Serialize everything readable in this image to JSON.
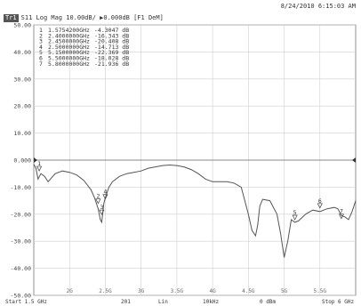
{
  "timestamp": "8/24/2010 6:15:03 AM",
  "trace": {
    "badge": "Tr1",
    "header": "S11 Log Mag 10.00dB/ ▶0.000dB [F1 DeM]"
  },
  "markers": [
    {
      "num": "1",
      "freq": "1.5754200GHz",
      "val": "-4.3047 dB"
    },
    {
      "num": "2",
      "freq": "2.4000000GHz",
      "val": "-16.343 dB"
    },
    {
      "num": "3",
      "freq": "2.4500000GHz",
      "val": "-20.408 dB"
    },
    {
      "num": "4",
      "freq": "2.5000000GHz",
      "val": "-14.713 dB"
    },
    {
      "num": "5",
      "freq": "5.1500000GHz",
      "val": "-22.369 dB"
    },
    {
      "num": "6",
      "freq": "5.5000000GHz",
      "val": "-18.028 dB"
    },
    {
      "num": "7",
      "freq": "5.8000000GHz",
      "val": "-21.936 dB"
    }
  ],
  "status": {
    "start": "Start 1.5 GHz",
    "points": "201",
    "sweep": "Lin",
    "ifbw": "10kHz",
    "power": "0 dBm",
    "stop": "Stop 6 GHz"
  },
  "chart_data": {
    "type": "line",
    "xlabel": "",
    "ylabel": "",
    "xlim": [
      1.5,
      6.0
    ],
    "ylim": [
      -50,
      50
    ],
    "grid": true,
    "yticks": [
      "50.00",
      "40.00",
      "30.00",
      "20.00",
      "10.00",
      "0.000",
      "-10.00",
      "-20.00",
      "-30.00",
      "-40.00",
      "-50.00"
    ],
    "xticks": [
      "2G",
      "2.5G",
      "3G",
      "3.5G",
      "4G",
      "4.5G",
      "5G",
      "5.5G"
    ],
    "xtick_values": [
      2.0,
      2.5,
      3.0,
      3.5,
      4.0,
      4.5,
      5.0,
      5.5
    ],
    "series": [
      {
        "x": [
          1.5,
          1.53,
          1.56,
          1.6,
          1.65,
          1.7,
          1.8,
          1.9,
          2.0,
          2.1,
          2.2,
          2.3,
          2.35,
          2.4,
          2.43,
          2.45,
          2.48,
          2.5,
          2.55,
          2.6,
          2.7,
          2.8,
          2.9,
          3.0,
          3.1,
          3.2,
          3.3,
          3.4,
          3.5,
          3.6,
          3.7,
          3.8,
          3.9,
          4.0,
          4.1,
          4.2,
          4.3,
          4.4,
          4.5,
          4.55,
          4.6,
          4.63,
          4.66,
          4.7,
          4.8,
          4.9,
          4.95,
          5.0,
          5.05,
          5.1,
          5.15,
          5.2,
          5.3,
          5.4,
          5.5,
          5.6,
          5.7,
          5.75,
          5.8,
          5.85,
          5.9,
          5.95,
          6.0
        ],
        "y": [
          -1.5,
          -3,
          -7,
          -5,
          -6,
          -8,
          -5,
          -4,
          -4.5,
          -5.5,
          -7.5,
          -11,
          -14,
          -18,
          -22,
          -23,
          -16,
          -14,
          -10,
          -8,
          -6,
          -5,
          -4.5,
          -4,
          -3,
          -2.5,
          -2,
          -1.8,
          -2,
          -2.5,
          -3.5,
          -5,
          -7,
          -8,
          -8,
          -8,
          -8.5,
          -10,
          -20,
          -26,
          -28,
          -24,
          -17,
          -14.5,
          -15,
          -20,
          -27,
          -36,
          -30,
          -22,
          -23,
          -22.5,
          -20,
          -18.5,
          -19,
          -18,
          -17.5,
          -18,
          -20.5,
          -21,
          -22,
          -19,
          -15
        ]
      }
    ],
    "markers": [
      {
        "label": "1",
        "x": 1.57542,
        "y": -4.3047
      },
      {
        "label": "2",
        "x": 2.4,
        "y": -16.343
      },
      {
        "label": "3",
        "x": 2.45,
        "y": -20.408
      },
      {
        "label": "4",
        "x": 2.5,
        "y": -14.713
      },
      {
        "label": "5",
        "x": 5.15,
        "y": -22.369
      },
      {
        "label": "6",
        "x": 5.5,
        "y": -18.028
      },
      {
        "label": "7",
        "x": 5.8,
        "y": -21.936
      }
    ]
  }
}
